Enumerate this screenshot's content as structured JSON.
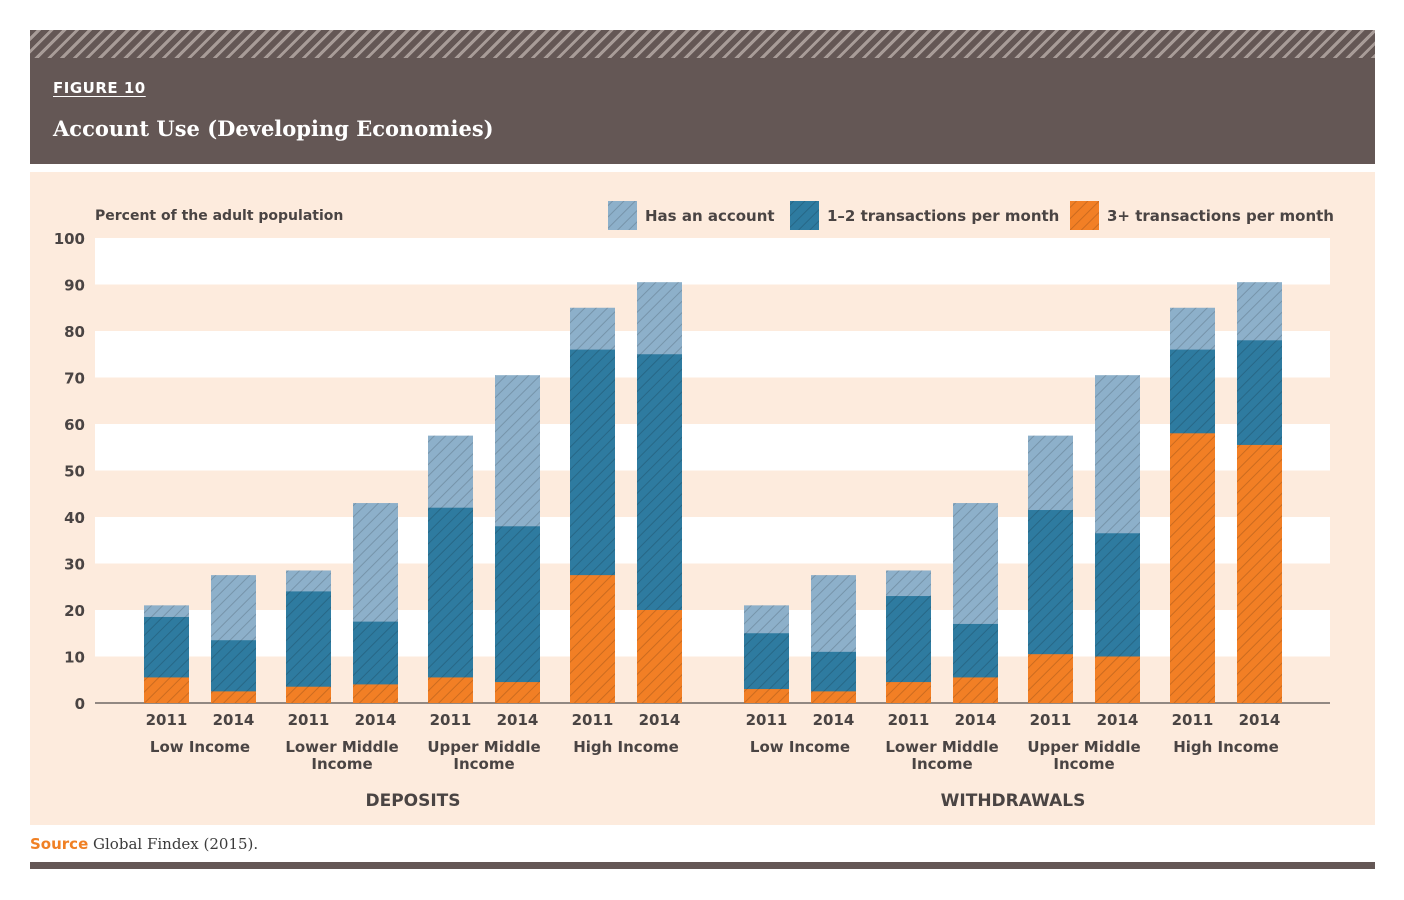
{
  "figure": {
    "label": "FIGURE 10",
    "title": "Account Use (Developing Economies)"
  },
  "source": {
    "label": "Source",
    "text": "Global Findex (2015)."
  },
  "colors": {
    "has_account": "#8db0ca",
    "one_two": "#2e7ba0",
    "three_plus": "#f27f25",
    "header": "#645755",
    "panel": "#fdebdd",
    "panel_label": "#f08024"
  },
  "chart_data": {
    "type": "bar",
    "stacked": "overlapping",
    "ylabel": "Percent of the adult population",
    "ylim": [
      0,
      100
    ],
    "yticks": [
      "0",
      "10",
      "20",
      "30",
      "40",
      "50",
      "60",
      "70",
      "80",
      "90",
      "100"
    ],
    "legend": {
      "placement": "top-right",
      "entries": [
        "Has an account",
        "1–2 transactions per month",
        "3+ transactions per month"
      ]
    },
    "panels": [
      {
        "name": "DEPOSITS",
        "groups": [
          {
            "label": [
              "Low Income"
            ],
            "bars": [
              {
                "year": "2011",
                "has_account": 21,
                "one_two": 18.5,
                "three_plus": 5.5
              },
              {
                "year": "2014",
                "has_account": 27.5,
                "one_two": 13.5,
                "three_plus": 2.5
              }
            ]
          },
          {
            "label": [
              "Lower Middle",
              "Income"
            ],
            "bars": [
              {
                "year": "2011",
                "has_account": 28.5,
                "one_two": 24,
                "three_plus": 3.5
              },
              {
                "year": "2014",
                "has_account": 43,
                "one_two": 17.5,
                "three_plus": 4
              }
            ]
          },
          {
            "label": [
              "Upper Middle",
              "Income"
            ],
            "bars": [
              {
                "year": "2011",
                "has_account": 57.5,
                "one_two": 42,
                "three_plus": 5.5
              },
              {
                "year": "2014",
                "has_account": 70.5,
                "one_two": 38,
                "three_plus": 4.5
              }
            ]
          },
          {
            "label": [
              "High Income"
            ],
            "bars": [
              {
                "year": "2011",
                "has_account": 85,
                "one_two": 76,
                "three_plus": 27.5
              },
              {
                "year": "2014",
                "has_account": 90.5,
                "one_two": 75,
                "three_plus": 20
              }
            ]
          }
        ]
      },
      {
        "name": "WITHDRAWALS",
        "groups": [
          {
            "label": [
              "Low Income"
            ],
            "bars": [
              {
                "year": "2011",
                "has_account": 21,
                "one_two": 15,
                "three_plus": 3
              },
              {
                "year": "2014",
                "has_account": 27.5,
                "one_two": 11,
                "three_plus": 2.5
              }
            ]
          },
          {
            "label": [
              "Lower Middle",
              "Income"
            ],
            "bars": [
              {
                "year": "2011",
                "has_account": 28.5,
                "one_two": 23,
                "three_plus": 4.5
              },
              {
                "year": "2014",
                "has_account": 43,
                "one_two": 17,
                "three_plus": 5.5
              }
            ]
          },
          {
            "label": [
              "Upper Middle",
              "Income"
            ],
            "bars": [
              {
                "year": "2011",
                "has_account": 57.5,
                "one_two": 41.5,
                "three_plus": 10.5
              },
              {
                "year": "2014",
                "has_account": 70.5,
                "one_two": 36.5,
                "three_plus": 10
              }
            ]
          },
          {
            "label": [
              "High Income"
            ],
            "bars": [
              {
                "year": "2011",
                "has_account": 85,
                "one_two": 76,
                "three_plus": 58
              },
              {
                "year": "2014",
                "has_account": 90.5,
                "one_two": 78,
                "three_plus": 55.5
              }
            ]
          }
        ]
      }
    ]
  }
}
